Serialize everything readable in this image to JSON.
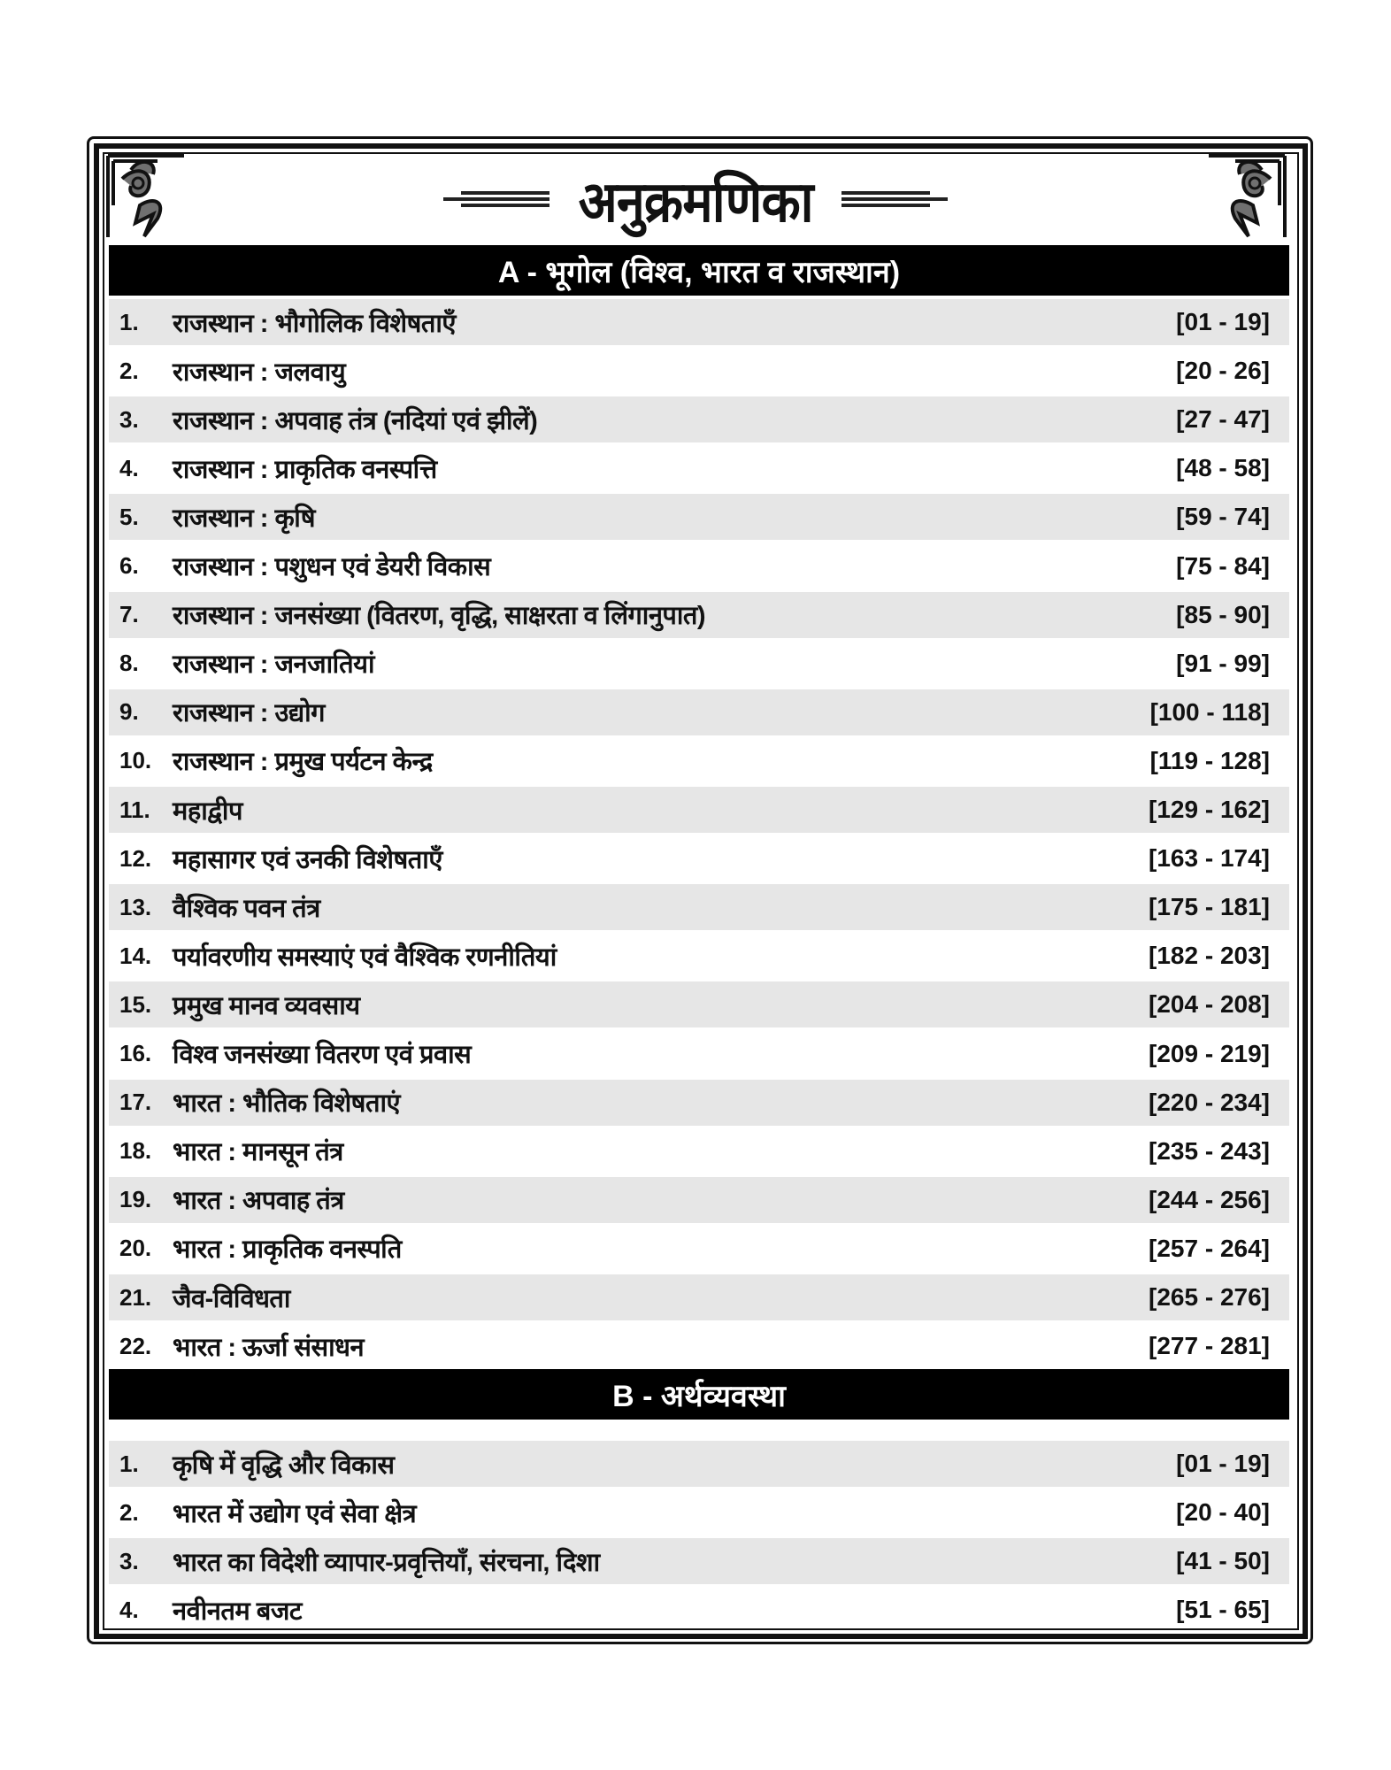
{
  "title": "अनुक्रमणिका",
  "colors": {
    "band": "#000000",
    "stripe": "#e6e6e6",
    "text": "#111111"
  },
  "sections": [
    {
      "heading": "A - भूगोल (विश्व, भारत व राजस्थान)",
      "items": [
        {
          "num": "1.",
          "title": "राजस्थान : भौगोलिक विशेषताएँ",
          "pages": "[01 - 19]"
        },
        {
          "num": "2.",
          "title": "राजस्थान : जलवायु",
          "pages": "[20 - 26]"
        },
        {
          "num": "3.",
          "title": "राजस्थान : अपवाह तंत्र (नदियां एवं झीलें)",
          "pages": "[27 - 47]"
        },
        {
          "num": "4.",
          "title": "राजस्थान : प्राकृतिक वनस्पत्ति",
          "pages": "[48 - 58]"
        },
        {
          "num": "5.",
          "title": "राजस्थान : कृषि",
          "pages": "[59 - 74]"
        },
        {
          "num": "6.",
          "title": "राजस्थान : पशुधन एवं डेयरी विकास",
          "pages": "[75 - 84]"
        },
        {
          "num": "7.",
          "title": "राजस्थान : जनसंख्या (वितरण, वृद्धि, साक्षरता व लिंगानुपात)",
          "pages": "[85 - 90]"
        },
        {
          "num": "8.",
          "title": "राजस्थान : जनजातियां",
          "pages": "[91 - 99]"
        },
        {
          "num": "9.",
          "title": "राजस्थान : उद्योग",
          "pages": "[100 - 118]"
        },
        {
          "num": "10.",
          "title": "राजस्थान : प्रमुख पर्यटन केन्द्र",
          "pages": "[119 - 128]"
        },
        {
          "num": "11.",
          "title": "महाद्वीप",
          "pages": "[129 - 162]"
        },
        {
          "num": "12.",
          "title": "महासागर एवं उनकी विशेषताएँ",
          "pages": "[163 - 174]"
        },
        {
          "num": "13.",
          "title": "वैश्विक पवन तंत्र",
          "pages": "[175 - 181]"
        },
        {
          "num": "14.",
          "title": "पर्यावरणीय समस्याएं एवं वैश्विक रणनीतियां",
          "pages": "[182 - 203]"
        },
        {
          "num": "15.",
          "title": "प्रमुख मानव व्यवसाय",
          "pages": "[204 - 208]"
        },
        {
          "num": "16.",
          "title": "विश्व जनसंख्या वितरण एवं प्रवास",
          "pages": "[209 - 219]"
        },
        {
          "num": "17.",
          "title": "भारत : भौतिक विशेषताएं",
          "pages": "[220 - 234]"
        },
        {
          "num": "18.",
          "title": "भारत : मानसून तंत्र",
          "pages": "[235 - 243]"
        },
        {
          "num": "19.",
          "title": "भारत : अपवाह तंत्र",
          "pages": "[244 - 256]"
        },
        {
          "num": "20.",
          "title": "भारत : प्राकृतिक वनस्पति",
          "pages": "[257 - 264]"
        },
        {
          "num": "21.",
          "title": "जैव-विविधता",
          "pages": "[265 - 276]"
        },
        {
          "num": "22.",
          "title": "भारत : ऊर्जा संसाधन",
          "pages": "[277 - 281]"
        }
      ]
    },
    {
      "heading": "B - अर्थव्यवस्था",
      "items": [
        {
          "num": "1.",
          "title": "कृषि में वृद्धि और विकास",
          "pages": "[01 - 19]"
        },
        {
          "num": "2.",
          "title": "भारत में उद्योग एवं सेवा क्षेत्र",
          "pages": "[20 - 40]"
        },
        {
          "num": "3.",
          "title": "भारत का विदेशी व्यापार-प्रवृत्तियाँ, संरचना, दिशा",
          "pages": "[41 - 50]"
        },
        {
          "num": "4.",
          "title": "नवीनतम बजट",
          "pages": "[51 - 65]"
        }
      ]
    }
  ]
}
